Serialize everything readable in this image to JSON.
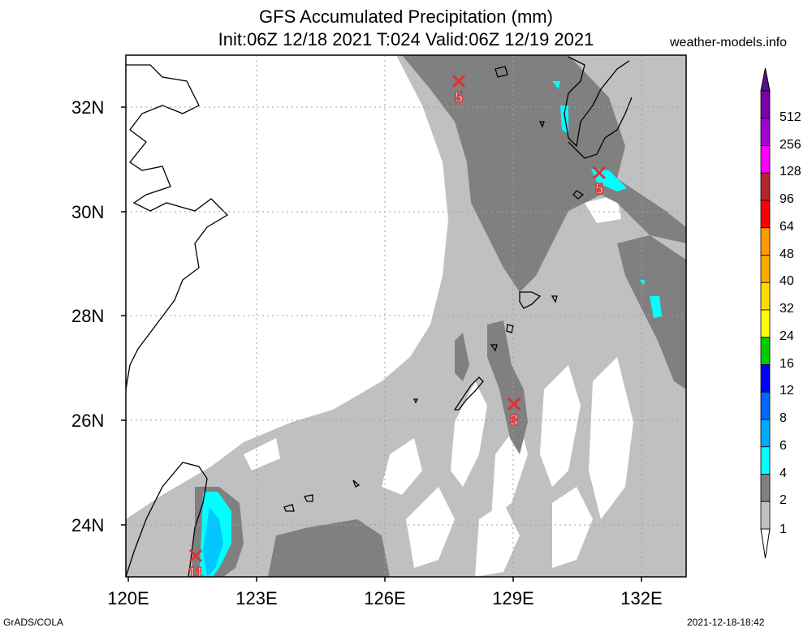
{
  "header": {
    "title": "GFS Accumulated Precipitation (mm)",
    "subtitle": "Init:06Z 12/18 2021 T:024 Valid:06Z 12/19 2021",
    "site": "weather-models.info"
  },
  "footer": {
    "left": "GrADS/COLA",
    "right": "2021-12-18-18:42"
  },
  "map": {
    "lat_labels": [
      "32N",
      "30N",
      "28N",
      "26N",
      "24N"
    ],
    "lon_labels": [
      "120E",
      "123E",
      "126E",
      "129E",
      "132E"
    ],
    "colors": {
      "c1": "#c0c0c0",
      "c2": "#808080",
      "c4": "#00ffff",
      "c6": "#00c8ff",
      "land_outline": "#000000",
      "grid": "#a0a0a0",
      "marker": "#e03030"
    },
    "markers": [
      {
        "value": "5",
        "name": "max-marker-north"
      },
      {
        "value": "5",
        "name": "max-marker-kyushu"
      },
      {
        "value": "3",
        "name": "max-marker-okinawa"
      },
      {
        "value": "11",
        "name": "max-marker-taiwan"
      }
    ]
  },
  "colorbar": {
    "labels": [
      "512",
      "256",
      "128",
      "96",
      "64",
      "48",
      "40",
      "32",
      "24",
      "16",
      "12",
      "8",
      "6",
      "4",
      "2",
      "1"
    ],
    "colors": [
      "#7a00a8",
      "#a000d0",
      "#ff00ff",
      "#b02828",
      "#ff0000",
      "#ff9900",
      "#ffaa00",
      "#ffdd00",
      "#ffff00",
      "#00cc00",
      "#0000ff",
      "#0066ff",
      "#00aaff",
      "#00ffff",
      "#808080",
      "#c0c0c0"
    ],
    "top_cap": "#55118a",
    "bottom_cap": "#ffffff"
  }
}
